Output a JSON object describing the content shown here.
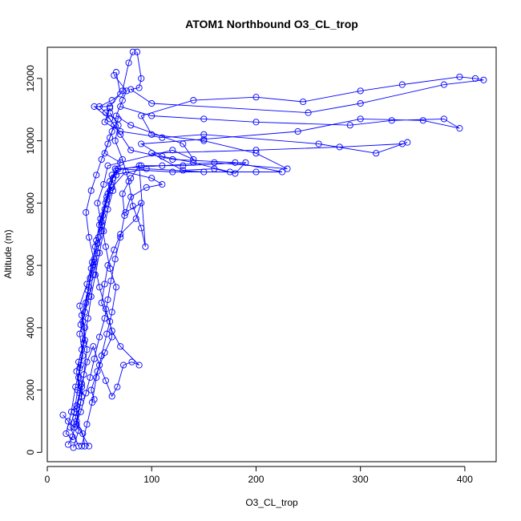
{
  "chart_data": {
    "type": "scatter",
    "title": "ATOM1 Northbound O3_CL_trop",
    "xlabel": "O3_CL_trop",
    "ylabel": "Altitude (m)",
    "xlim": [
      0,
      430
    ],
    "ylim": [
      -300,
      13000
    ],
    "xticks": [
      0,
      100,
      200,
      300,
      400
    ],
    "yticks": [
      0,
      2000,
      4000,
      6000,
      8000,
      10000,
      12000
    ],
    "grid": false,
    "legend": "none",
    "color": "#0000ff",
    "style": "points joined by lines",
    "series": [
      {
        "values": [
          [
            40,
            200
          ],
          [
            28,
            900
          ],
          [
            32,
            1600
          ],
          [
            35,
            2500
          ],
          [
            38,
            3300
          ],
          [
            34,
            4200
          ],
          [
            40,
            5000
          ],
          [
            44,
            5700
          ],
          [
            48,
            6400
          ],
          [
            52,
            7100
          ],
          [
            55,
            7800
          ],
          [
            60,
            8400
          ],
          [
            62,
            8900
          ],
          [
            95,
            9100
          ],
          [
            150,
            9000
          ],
          [
            200,
            9000
          ],
          [
            225,
            9000
          ],
          [
            180,
            9300
          ],
          [
            120,
            9400
          ],
          [
            80,
            9700
          ],
          [
            70,
            10200
          ],
          [
            60,
            10700
          ],
          [
            45,
            11100
          ],
          [
            60,
            11100
          ],
          [
            72,
            11600
          ],
          [
            78,
            12500
          ],
          [
            82,
            12850
          ]
        ]
      },
      {
        "values": [
          [
            25,
            150
          ],
          [
            30,
            700
          ],
          [
            28,
            1400
          ],
          [
            33,
            2100
          ],
          [
            30,
            2900
          ],
          [
            36,
            3600
          ],
          [
            33,
            4400
          ],
          [
            39,
            5200
          ],
          [
            42,
            5900
          ],
          [
            46,
            6600
          ],
          [
            50,
            7300
          ],
          [
            56,
            8000
          ],
          [
            61,
            8600
          ],
          [
            65,
            9100
          ],
          [
            110,
            9200
          ],
          [
            160,
            9300
          ],
          [
            230,
            9100
          ],
          [
            200,
            9600
          ],
          [
            150,
            10000
          ],
          [
            100,
            10200
          ],
          [
            90,
            10800
          ],
          [
            140,
            11300
          ],
          [
            200,
            11400
          ],
          [
            245,
            11250
          ],
          [
            300,
            11600
          ],
          [
            340,
            11800
          ],
          [
            395,
            12050
          ],
          [
            410,
            12000
          ],
          [
            418,
            11950
          ],
          [
            380,
            11800
          ],
          [
            300,
            11200
          ],
          [
            250,
            10900
          ],
          [
            100,
            11200
          ],
          [
            80,
            11650
          ],
          [
            88,
            11700
          ],
          [
            90,
            12000
          ],
          [
            86,
            12850
          ]
        ]
      },
      {
        "values": [
          [
            30,
            200
          ],
          [
            22,
            800
          ],
          [
            26,
            1300
          ],
          [
            29,
            2000
          ],
          [
            31,
            2700
          ],
          [
            35,
            3500
          ],
          [
            32,
            4100
          ],
          [
            37,
            4800
          ],
          [
            41,
            5600
          ],
          [
            45,
            6200
          ],
          [
            49,
            6900
          ],
          [
            53,
            7600
          ],
          [
            58,
            8300
          ],
          [
            63,
            8800
          ],
          [
            68,
            9100
          ],
          [
            120,
            9000
          ],
          [
            175,
            9000
          ],
          [
            140,
            9300
          ],
          [
            110,
            9500
          ],
          [
            90,
            9900
          ],
          [
            150,
            10050
          ],
          [
            240,
            10300
          ],
          [
            300,
            10700
          ],
          [
            360,
            10650
          ],
          [
            395,
            10400
          ],
          [
            380,
            10700
          ],
          [
            330,
            10650
          ],
          [
            290,
            10500
          ],
          [
            200,
            10600
          ],
          [
            150,
            10700
          ],
          [
            100,
            10800
          ],
          [
            70,
            11100
          ]
        ]
      },
      {
        "values": [
          [
            36,
            200
          ],
          [
            34,
            600
          ],
          [
            27,
            1100
          ],
          [
            31,
            1900
          ],
          [
            28,
            2600
          ],
          [
            33,
            3300
          ],
          [
            36,
            4000
          ],
          [
            31,
            4700
          ],
          [
            38,
            5400
          ],
          [
            43,
            6100
          ],
          [
            47,
            6800
          ],
          [
            51,
            7500
          ],
          [
            57,
            8200
          ],
          [
            60,
            8700
          ],
          [
            66,
            9050
          ],
          [
            90,
            9200
          ],
          [
            130,
            9200
          ],
          [
            190,
            9300
          ],
          [
            180,
            8950
          ],
          [
            160,
            9100
          ],
          [
            130,
            9050
          ],
          [
            100,
            9600
          ],
          [
            200,
            9700
          ],
          [
            280,
            9800
          ],
          [
            340,
            9900
          ],
          [
            345,
            9950
          ],
          [
            315,
            9600
          ],
          [
            260,
            9900
          ],
          [
            150,
            10200
          ],
          [
            110,
            10100
          ],
          [
            70,
            10300
          ],
          [
            55,
            10600
          ],
          [
            60,
            11050
          ]
        ]
      },
      {
        "values": [
          [
            20,
            250
          ],
          [
            24,
            500
          ],
          [
            28,
            1000
          ],
          [
            33,
            1800
          ],
          [
            30,
            2400
          ],
          [
            34,
            3100
          ],
          [
            31,
            3800
          ],
          [
            36,
            4500
          ],
          [
            40,
            5300
          ],
          [
            44,
            6000
          ],
          [
            48,
            6700
          ],
          [
            52,
            7400
          ],
          [
            57,
            8100
          ],
          [
            62,
            8500
          ],
          [
            75,
            9000
          ],
          [
            100,
            8800
          ],
          [
            110,
            8600
          ],
          [
            95,
            8500
          ],
          [
            80,
            8200
          ],
          [
            75,
            7700
          ],
          [
            90,
            8000
          ],
          [
            85,
            7500
          ],
          [
            70,
            7000
          ],
          [
            64,
            6500
          ],
          [
            58,
            6000
          ],
          [
            55,
            5400
          ],
          [
            52,
            4800
          ],
          [
            60,
            4200
          ],
          [
            62,
            3700
          ],
          [
            55,
            3200
          ],
          [
            48,
            2600
          ],
          [
            42,
            2000
          ],
          [
            45,
            1700
          ]
        ]
      },
      {
        "values": [
          [
            15,
            1200
          ],
          [
            20,
            1000
          ],
          [
            26,
            800
          ],
          [
            32,
            1300
          ],
          [
            37,
            1900
          ],
          [
            41,
            2400
          ],
          [
            45,
            3000
          ],
          [
            50,
            3700
          ],
          [
            55,
            4300
          ],
          [
            58,
            4900
          ],
          [
            61,
            5500
          ],
          [
            65,
            6200
          ],
          [
            70,
            6900
          ],
          [
            74,
            7600
          ],
          [
            72,
            8300
          ],
          [
            80,
            8800
          ],
          [
            88,
            9200
          ],
          [
            94,
            6600
          ],
          [
            90,
            7200
          ],
          [
            82,
            7900
          ],
          [
            78,
            8700
          ],
          [
            72,
            9400
          ],
          [
            65,
            10000
          ],
          [
            68,
            10500
          ],
          [
            60,
            10900
          ]
        ]
      },
      {
        "values": [
          [
            25,
            400
          ],
          [
            18,
            600
          ],
          [
            23,
            1300
          ],
          [
            27,
            2100
          ],
          [
            32,
            2800
          ],
          [
            35,
            3500
          ],
          [
            39,
            4300
          ],
          [
            42,
            5000
          ],
          [
            46,
            5700
          ],
          [
            50,
            6400
          ],
          [
            54,
            7100
          ],
          [
            58,
            7800
          ],
          [
            63,
            8400
          ],
          [
            66,
            8900
          ],
          [
            70,
            9300
          ],
          [
            55,
            9600
          ],
          [
            60,
            10100
          ],
          [
            64,
            10500
          ],
          [
            56,
            10900
          ],
          [
            50,
            11100
          ],
          [
            62,
            11300
          ],
          [
            70,
            11500
          ],
          [
            66,
            12200
          ]
        ]
      },
      {
        "values": [
          [
            33,
            200
          ],
          [
            38,
            900
          ],
          [
            43,
            1600
          ],
          [
            47,
            2400
          ],
          [
            52,
            3100
          ],
          [
            57,
            3800
          ],
          [
            62,
            4500
          ],
          [
            66,
            5300
          ],
          [
            60,
            5900
          ],
          [
            56,
            6600
          ],
          [
            52,
            7300
          ],
          [
            48,
            8000
          ],
          [
            54,
            8600
          ],
          [
            58,
            9200
          ],
          [
            120,
            9700
          ],
          [
            140,
            9400
          ],
          [
            130,
            9900
          ],
          [
            80,
            10500
          ],
          [
            66,
            10800
          ],
          [
            72,
            11300
          ],
          [
            76,
            11600
          ],
          [
            64,
            12100
          ]
        ]
      },
      {
        "values": [
          [
            28,
            1500
          ],
          [
            33,
            2200
          ],
          [
            38,
            2900
          ],
          [
            44,
            3400
          ],
          [
            50,
            2800
          ],
          [
            56,
            2300
          ],
          [
            62,
            1800
          ],
          [
            67,
            2100
          ],
          [
            73,
            2800
          ],
          [
            81,
            2900
          ],
          [
            88,
            2800
          ],
          [
            70,
            3400
          ],
          [
            62,
            3900
          ],
          [
            56,
            4600
          ],
          [
            50,
            5300
          ],
          [
            45,
            6100
          ],
          [
            40,
            6900
          ],
          [
            37,
            7700
          ],
          [
            42,
            8400
          ],
          [
            47,
            8900
          ],
          [
            52,
            9400
          ],
          [
            58,
            9900
          ],
          [
            62,
            10300
          ],
          [
            68,
            10700
          ]
        ]
      }
    ]
  }
}
